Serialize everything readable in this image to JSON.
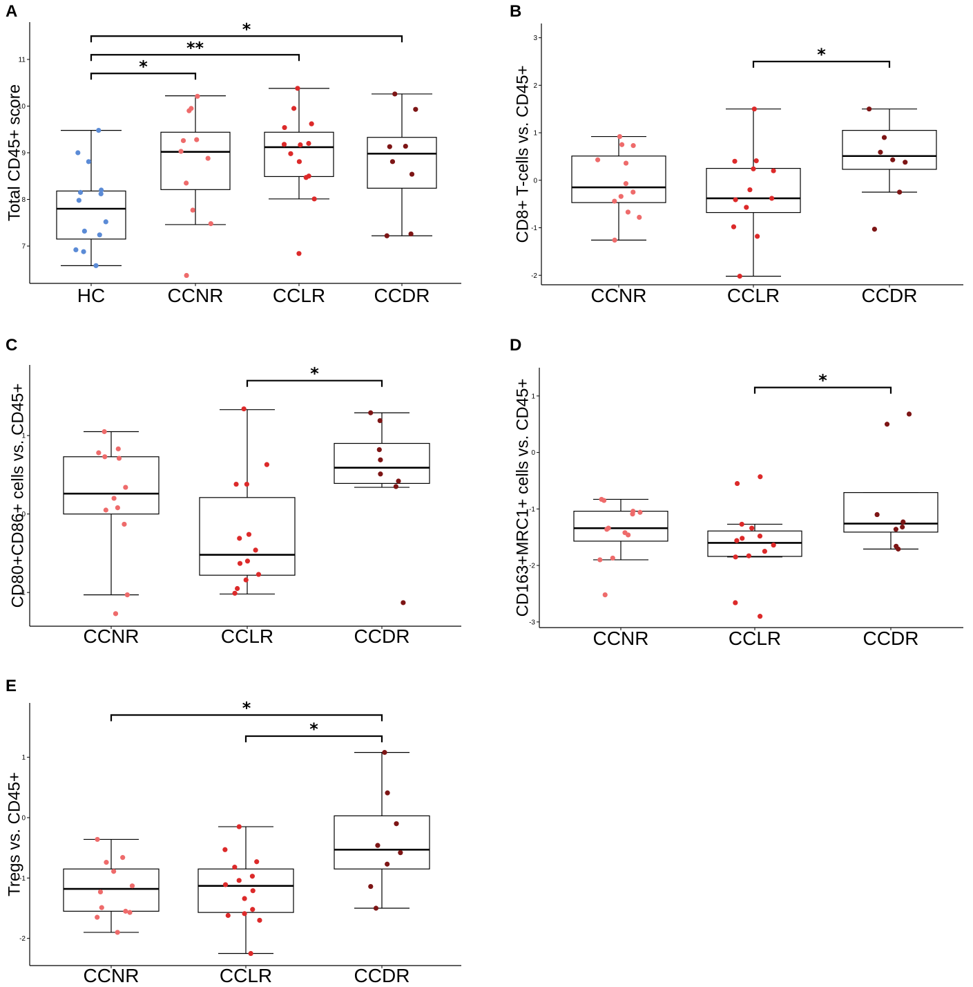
{
  "colors": {
    "HC": "#5b8bd6",
    "CCNR": "#ee6b6b",
    "CCLR": "#dc2a2a",
    "CCDR": "#7d1515",
    "axis": "#000000",
    "box": "#000000"
  },
  "chart_data": [
    {
      "panel": "A",
      "type": "box",
      "ylabel": "Total CD45+ score",
      "categories": [
        "HC",
        "CCNR",
        "CCLR",
        "CCDR"
      ],
      "ylim": [
        6.2,
        11.8
      ],
      "yticks": [
        "7",
        "8",
        "9",
        "10",
        "11"
      ],
      "boxes": [
        {
          "q1": 7.15,
          "median": 7.8,
          "q3": 8.18,
          "whisker_low": 6.58,
          "whisker_high": 9.48
        },
        {
          "q1": 8.21,
          "median": 9.02,
          "q3": 9.44,
          "whisker_low": 7.46,
          "whisker_high": 10.22
        },
        {
          "q1": 8.49,
          "median": 9.12,
          "q3": 9.44,
          "whisker_low": 8.01,
          "whisker_high": 10.38
        },
        {
          "q1": 8.24,
          "median": 8.98,
          "q3": 9.33,
          "whisker_low": 7.22,
          "whisker_high": 10.26
        }
      ],
      "points": [
        [
          9.48,
          9.0,
          8.81,
          8.2,
          8.15,
          8.12,
          7.98,
          7.52,
          7.32,
          7.24,
          6.92,
          6.88,
          6.58
        ],
        [
          10.21,
          9.95,
          9.9,
          9.28,
          9.26,
          9.03,
          8.88,
          8.35,
          7.77,
          7.48,
          6.37
        ],
        [
          10.38,
          9.95,
          9.62,
          9.54,
          9.2,
          9.18,
          9.17,
          8.98,
          8.81,
          8.5,
          8.47,
          8.01,
          6.84
        ],
        [
          10.26,
          9.93,
          9.14,
          9.13,
          8.81,
          8.54,
          7.26,
          7.22
        ]
      ],
      "significance": [
        {
          "from": "HC",
          "to": "CCNR",
          "label": "*",
          "y": 10.7
        },
        {
          "from": "HC",
          "to": "CCLR",
          "label": "**",
          "y": 11.1
        },
        {
          "from": "HC",
          "to": "CCDR",
          "label": "*",
          "y": 11.5
        }
      ]
    },
    {
      "panel": "B",
      "type": "box",
      "ylabel": "CD8+ T-cells vs. CD45+",
      "categories": [
        "CCNR",
        "CCLR",
        "CCDR"
      ],
      "ylim": [
        -2.2,
        3.3
      ],
      "yticks": [
        "-2",
        "-1",
        "0",
        "1",
        "2",
        "3"
      ],
      "boxes": [
        {
          "q1": -0.47,
          "median": -0.15,
          "q3": 0.51,
          "whisker_low": -1.26,
          "whisker_high": 0.92
        },
        {
          "q1": -0.68,
          "median": -0.38,
          "q3": 0.25,
          "whisker_low": -2.02,
          "whisker_high": 1.5
        },
        {
          "q1": 0.23,
          "median": 0.51,
          "q3": 1.05,
          "whisker_low": -0.25,
          "whisker_high": 1.5
        }
      ],
      "points": [
        [
          0.92,
          0.75,
          0.73,
          0.43,
          0.36,
          -0.07,
          -0.25,
          -0.34,
          -0.44,
          -0.67,
          -0.78,
          -1.26
        ],
        [
          1.5,
          0.41,
          0.4,
          0.24,
          0.2,
          -0.2,
          -0.38,
          -0.41,
          -0.57,
          -0.98,
          -1.18,
          -2.02
        ],
        [
          1.5,
          0.9,
          0.59,
          0.43,
          0.38,
          -0.25,
          -1.03
        ]
      ],
      "significance": [
        {
          "from": "CCLR",
          "to": "CCDR",
          "label": "*",
          "y": 2.5
        }
      ]
    },
    {
      "panel": "C",
      "type": "box",
      "ylabel": "CD80+CD86+ cells vs. CD45+",
      "categories": [
        "CCNR",
        "CCLR",
        "CCDR"
      ],
      "ylim": [
        -1.43,
        1.9
      ],
      "yticks": [
        "-1",
        "0",
        "1"
      ],
      "boxes": [
        {
          "q1": 0.0,
          "median": 0.26,
          "q3": 0.73,
          "whisker_low": -1.03,
          "whisker_high": 1.05
        },
        {
          "q1": -0.78,
          "median": -0.52,
          "q3": 0.21,
          "whisker_low": -1.02,
          "whisker_high": 1.33
        },
        {
          "q1": 0.39,
          "median": 0.59,
          "q3": 0.9,
          "whisker_low": 0.34,
          "whisker_high": 1.29
        }
      ],
      "points": [
        [
          1.05,
          0.83,
          0.78,
          0.73,
          0.71,
          0.34,
          0.2,
          0.08,
          0.05,
          -0.13,
          -1.03,
          -1.27
        ],
        [
          1.34,
          0.63,
          0.38,
          0.38,
          -0.26,
          -0.31,
          -0.46,
          -0.6,
          -0.63,
          -0.77,
          -0.84,
          -0.95,
          -1.01
        ],
        [
          1.29,
          1.19,
          0.82,
          0.69,
          0.51,
          0.42,
          0.35,
          -1.13
        ]
      ],
      "significance": [
        {
          "from": "CCLR",
          "to": "CCDR",
          "label": "*",
          "y": 1.7
        }
      ]
    },
    {
      "panel": "D",
      "type": "box",
      "ylabel": "CD163+MRC1+ cells vs. CD45+",
      "categories": [
        "CCNR",
        "CCLR",
        "CCDR"
      ],
      "ylim": [
        -3.1,
        1.5
      ],
      "yticks": [
        "-3",
        "-2",
        "-1",
        "0",
        "1"
      ],
      "boxes": [
        {
          "q1": -1.57,
          "median": -1.34,
          "q3": -1.04,
          "whisker_low": -1.9,
          "whisker_high": -0.83
        },
        {
          "q1": -1.84,
          "median": -1.6,
          "q3": -1.39,
          "whisker_low": -1.85,
          "whisker_high": -1.27
        },
        {
          "q1": -1.41,
          "median": -1.26,
          "q3": -0.71,
          "whisker_low": -1.71,
          "whisker_high": -0.71
        }
      ],
      "points": [
        [
          -0.83,
          -0.85,
          -1.04,
          -1.06,
          -1.09,
          -1.34,
          -1.36,
          -1.42,
          -1.46,
          -1.87,
          -1.9,
          -2.52
        ],
        [
          -0.43,
          -0.55,
          -1.27,
          -1.34,
          -1.48,
          -1.52,
          -1.56,
          -1.64,
          -1.75,
          -1.83,
          -1.85,
          -2.66,
          -2.9
        ],
        [
          0.68,
          0.5,
          -1.1,
          -1.23,
          -1.32,
          -1.36,
          -1.66,
          -1.71
        ]
      ],
      "significance": [
        {
          "from": "CCLR",
          "to": "CCDR",
          "label": "*",
          "y": 1.15
        }
      ]
    },
    {
      "panel": "E",
      "type": "box",
      "ylabel": "Tregs vs. CD45+",
      "categories": [
        "CCNR",
        "CCLR",
        "CCDR"
      ],
      "ylim": [
        -2.45,
        1.9
      ],
      "yticks": [
        "-2",
        "-1",
        "0",
        "1"
      ],
      "boxes": [
        {
          "q1": -1.55,
          "median": -1.18,
          "q3": -0.85,
          "whisker_low": -1.9,
          "whisker_high": -0.36
        },
        {
          "q1": -1.57,
          "median": -1.13,
          "q3": -0.85,
          "whisker_low": -2.25,
          "whisker_high": -0.15
        },
        {
          "q1": -0.85,
          "median": -0.53,
          "q3": 0.03,
          "whisker_low": -1.5,
          "whisker_high": 1.08
        }
      ],
      "points": [
        [
          -0.36,
          -0.66,
          -0.74,
          -0.89,
          -1.13,
          -1.23,
          -1.49,
          -1.55,
          -1.57,
          -1.65,
          -1.9
        ],
        [
          -0.15,
          -0.53,
          -0.73,
          -0.82,
          -0.97,
          -1.04,
          -1.11,
          -1.21,
          -1.34,
          -1.52,
          -1.59,
          -1.62,
          -1.7,
          -2.25
        ],
        [
          1.08,
          0.41,
          -0.1,
          -0.46,
          -0.58,
          -0.77,
          -1.14,
          -1.5
        ]
      ],
      "significance": [
        {
          "from": "CCNR",
          "to": "CCDR",
          "label": "*",
          "y": 1.7
        },
        {
          "from": "CCLR",
          "to": "CCDR",
          "label": "*",
          "y": 1.35
        }
      ]
    }
  ]
}
